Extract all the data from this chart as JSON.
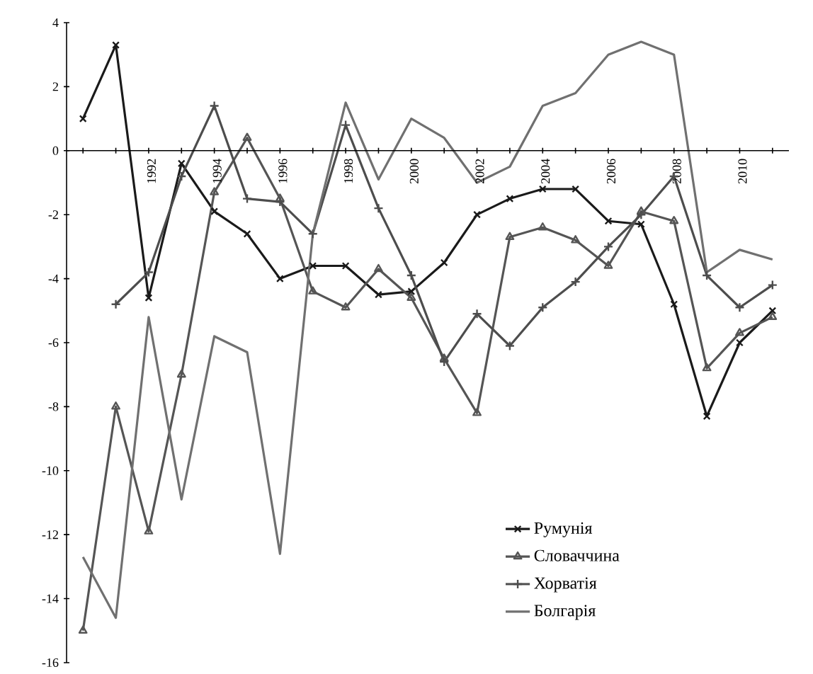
{
  "chart_data": {
    "type": "line",
    "categories": [
      null,
      null,
      "1992",
      null,
      "1994",
      null,
      "1996",
      null,
      "1998",
      null,
      "2000",
      null,
      "2002",
      null,
      "2004",
      null,
      "2006",
      null,
      "2008",
      null,
      "2010",
      null
    ],
    "ylim": [
      -16,
      4
    ],
    "yticks": [
      -16,
      -14,
      -12,
      -10,
      -8,
      -6,
      -4,
      -2,
      0,
      2,
      4
    ],
    "legend": "bottom right",
    "grid": false,
    "series": [
      {
        "name": "Румунія",
        "color": "#1a1a1a",
        "marker": "cross",
        "values": [
          1.0,
          3.3,
          -4.6,
          -0.4,
          -1.9,
          -2.6,
          -4.0,
          -3.6,
          -3.6,
          -4.5,
          -4.4,
          -3.5,
          -2.0,
          -1.5,
          -1.2,
          -1.2,
          -2.2,
          -2.3,
          -4.8,
          -8.3,
          -6.0,
          -5.0
        ]
      },
      {
        "name": "Словаччина",
        "color": "#555555",
        "marker": "triangle",
        "values": [
          -15.0,
          -8.0,
          -11.9,
          -7.0,
          -1.3,
          0.4,
          -1.5,
          -4.4,
          -4.9,
          -3.7,
          -4.6,
          -6.5,
          -8.2,
          -2.7,
          -2.4,
          -2.8,
          -3.6,
          -1.9,
          -2.2,
          -6.8,
          -5.7,
          -5.2
        ]
      },
      {
        "name": "Хорватія",
        "color": "#4d4d4d",
        "marker": "plus",
        "values": [
          null,
          -4.8,
          -3.8,
          -0.8,
          1.4,
          -1.5,
          -1.6,
          -2.6,
          0.8,
          -1.8,
          -3.9,
          -6.6,
          -5.1,
          -6.1,
          -4.9,
          -4.1,
          -3.0,
          -2.0,
          -0.8,
          -3.9,
          -4.9,
          -4.2
        ]
      },
      {
        "name": "Болгарія",
        "color": "#707070",
        "marker": "none",
        "values": [
          -12.7,
          -14.6,
          -5.2,
          -10.9,
          -5.8,
          -6.3,
          -12.6,
          -2.6,
          1.5,
          -0.9,
          1.0,
          0.4,
          -1.0,
          -0.5,
          1.4,
          1.8,
          3.0,
          3.4,
          3.0,
          -3.8,
          -3.1,
          -3.4
        ]
      }
    ]
  }
}
